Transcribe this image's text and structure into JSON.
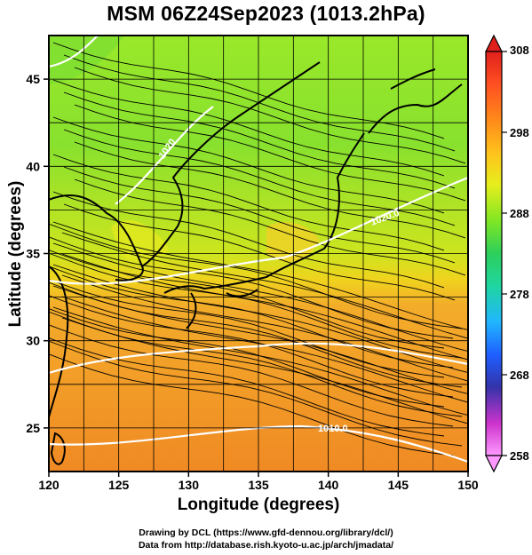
{
  "title": "MSM 06Z24Sep2023 (1013.2hPa)",
  "x_axis": {
    "label": "Longitude (degrees)",
    "ticks": [
      "120",
      "125",
      "130",
      "135",
      "140",
      "145",
      "150"
    ],
    "range": [
      120,
      150
    ]
  },
  "y_axis": {
    "label": "Latitude  (degrees)",
    "ticks": [
      "25",
      "30",
      "35",
      "40",
      "45"
    ],
    "range": [
      22.5,
      47.5
    ]
  },
  "colorbar": {
    "ticks": [
      "308",
      "298",
      "288",
      "278",
      "268",
      "258"
    ],
    "range": [
      258,
      308
    ],
    "colors": [
      "#ff99ff",
      "#cc33cc",
      "#3333aa",
      "#1f5fff",
      "#21b6ff",
      "#1fd6a0",
      "#2ccf5c",
      "#7fe624",
      "#e6ee1c",
      "#ffc21c",
      "#ff8a1a",
      "#ff4f22",
      "#e0201c"
    ]
  },
  "contour_labels": {
    "c1020_north": "1020",
    "c1020_east": "1020.0",
    "c1010_south": "1010.0"
  },
  "credits": {
    "line1": "Drawing by DCL (https://www.gfd-dennou.org/library/dcl/)",
    "line2": "Data from http://database.rish.kyoto-u.ac.jp/arch/jmadata/"
  },
  "colors": {
    "field_north": "#a6ec24",
    "field_mid": "#e2e820",
    "field_south": "#f2a628",
    "isobar": "#ffffff",
    "coastline": "#000000"
  }
}
